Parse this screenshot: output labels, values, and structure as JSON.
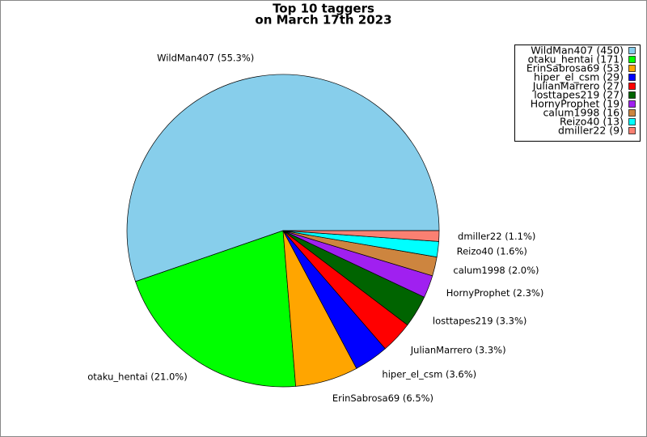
{
  "chart_data": {
    "type": "pie",
    "title": "Top 10 taggers",
    "subtitle": "on March 17th 2023",
    "categories": [
      "WildMan407",
      "otaku_hentai",
      "ErinSabrosa69",
      "hiper_el_csm",
      "JulianMarrero",
      "losttapes219",
      "HornyProphet",
      "calum1998",
      "Reizo40",
      "dmiller22"
    ],
    "values": [
      450,
      171,
      53,
      29,
      27,
      27,
      19,
      16,
      13,
      9
    ],
    "legend_labels": [
      "WildMan407 (450)",
      "otaku_hentai (171)",
      "ErinSabrosa69 (53)",
      "hiper_el_csm (29)",
      "JulianMarrero (27)",
      "losttapes219 (27)",
      "HornyProphet (19)",
      "calum1998 (16)",
      "Reizo40 (13)",
      "dmiller22 (9)"
    ],
    "slice_labels": [
      "WildMan407 (55.3%)",
      "otaku_hentai (21.0%)",
      "ErinSabrosa69 (6.5%)",
      "hiper_el_csm (3.6%)",
      "JulianMarrero (3.3%)",
      "losttapes219 (3.3%)",
      "HornyProphet (2.3%)",
      "calum1998 (2.0%)",
      "Reizo40 (1.6%)",
      "dmiller22 (1.1%)"
    ],
    "colors": [
      "#87ceeb",
      "#00ff00",
      "#ffa500",
      "#0000ff",
      "#ff0000",
      "#006400",
      "#a020f0",
      "#cd853f",
      "#00ffff",
      "#fa8072"
    ],
    "legend": "upper right"
  }
}
